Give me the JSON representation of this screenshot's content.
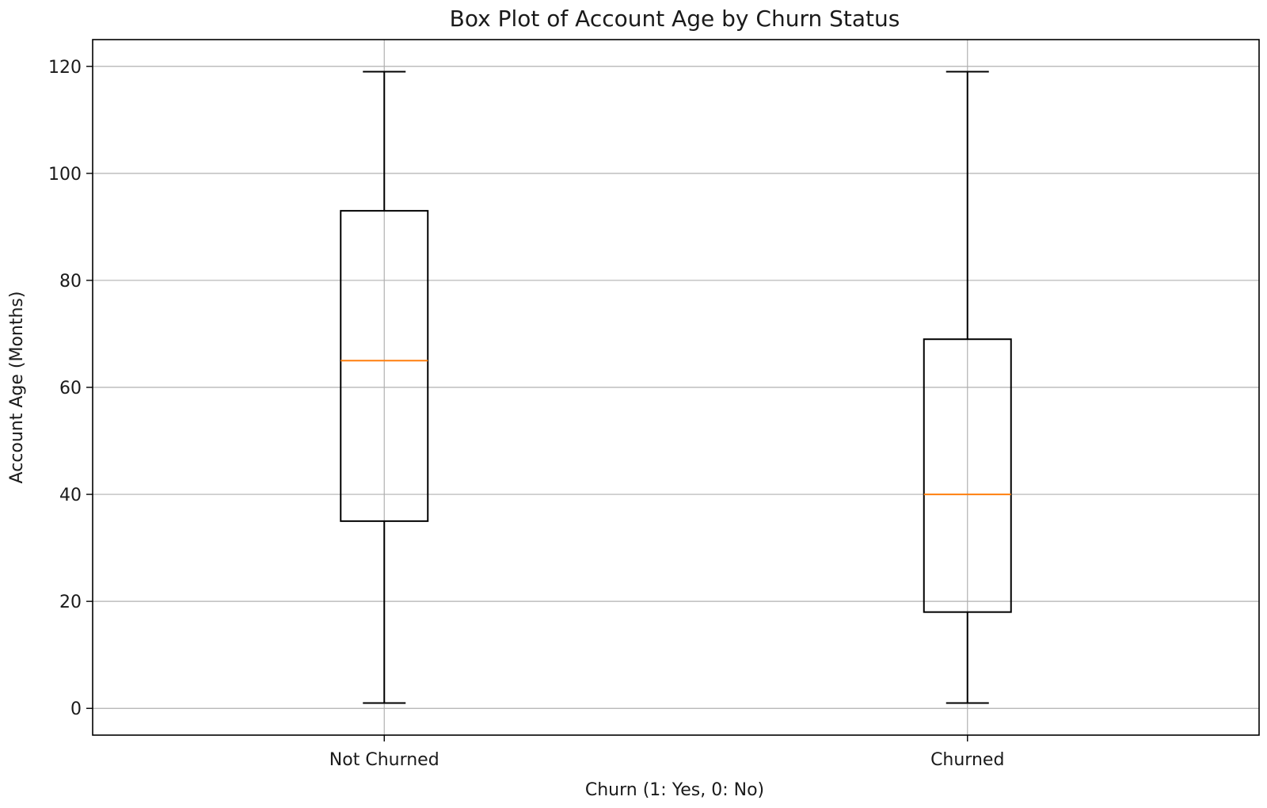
{
  "chart_data": {
    "type": "box",
    "title": "Box Plot of Account Age by Churn Status",
    "xlabel": "Churn (1: Yes, 0: No)",
    "ylabel": "Account Age (Months)",
    "categories": [
      "Not Churned",
      "Churned"
    ],
    "boxes": [
      {
        "category": "Not Churned",
        "whisker_low": 1,
        "q1": 35,
        "median": 65,
        "q3": 93,
        "whisker_high": 119
      },
      {
        "category": "Churned",
        "whisker_low": 1,
        "q1": 18,
        "median": 40,
        "q3": 69,
        "whisker_high": 119
      }
    ],
    "ylim": [
      -5,
      125
    ],
    "yticks": [
      0,
      20,
      40,
      60,
      80,
      100,
      120
    ],
    "grid": true,
    "colors": {
      "box": "#000000",
      "median": "#ff7f0e",
      "grid": "#b0b0b0",
      "axes": "#000000"
    }
  }
}
